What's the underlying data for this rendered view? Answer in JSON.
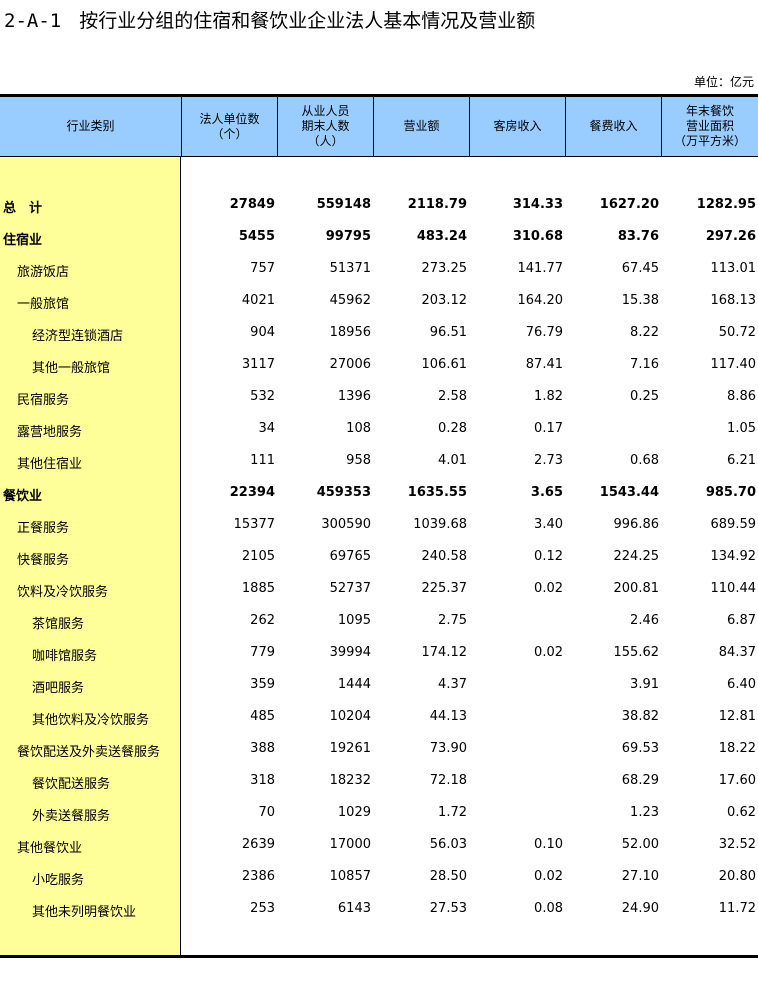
{
  "title": {
    "code": "2-A-1",
    "text": "按行业分组的住宿和餐饮业企业法人基本情况及营业额"
  },
  "unit": "单位：亿元",
  "colors": {
    "header_bg": "#99ccff",
    "category_bg": "#ffff99"
  },
  "columns": [
    "行业类别",
    "法人单位数\n（个）",
    "从业人员\n期末人数\n（人）",
    "营业额",
    "客房收入",
    "餐费收入",
    "年末餐饮\n营业面积\n（万平方米）"
  ],
  "rows": [
    {
      "name": "总　计",
      "level": 0,
      "bold": true,
      "values": [
        "27849",
        "559148",
        "2118.79",
        "314.33",
        "1627.20",
        "1282.95"
      ]
    },
    {
      "name": "住宿业",
      "level": 0,
      "bold": true,
      "values": [
        "5455",
        "99795",
        "483.24",
        "310.68",
        "83.76",
        "297.26"
      ]
    },
    {
      "name": "旅游饭店",
      "level": 1,
      "values": [
        "757",
        "51371",
        "273.25",
        "141.77",
        "67.45",
        "113.01"
      ]
    },
    {
      "name": "一般旅馆",
      "level": 1,
      "values": [
        "4021",
        "45962",
        "203.12",
        "164.20",
        "15.38",
        "168.13"
      ]
    },
    {
      "name": "经济型连锁酒店",
      "level": 2,
      "values": [
        "904",
        "18956",
        "96.51",
        "76.79",
        "8.22",
        "50.72"
      ]
    },
    {
      "name": "其他一般旅馆",
      "level": 2,
      "values": [
        "3117",
        "27006",
        "106.61",
        "87.41",
        "7.16",
        "117.40"
      ]
    },
    {
      "name": "民宿服务",
      "level": 1,
      "values": [
        "532",
        "1396",
        "2.58",
        "1.82",
        "0.25",
        "8.86"
      ]
    },
    {
      "name": "露营地服务",
      "level": 1,
      "values": [
        "34",
        "108",
        "0.28",
        "0.17",
        "",
        "1.05"
      ]
    },
    {
      "name": "其他住宿业",
      "level": 1,
      "values": [
        "111",
        "958",
        "4.01",
        "2.73",
        "0.68",
        "6.21"
      ]
    },
    {
      "name": "餐饮业",
      "level": 0,
      "bold": true,
      "values": [
        "22394",
        "459353",
        "1635.55",
        "3.65",
        "1543.44",
        "985.70"
      ]
    },
    {
      "name": "正餐服务",
      "level": 1,
      "values": [
        "15377",
        "300590",
        "1039.68",
        "3.40",
        "996.86",
        "689.59"
      ]
    },
    {
      "name": "快餐服务",
      "level": 1,
      "values": [
        "2105",
        "69765",
        "240.58",
        "0.12",
        "224.25",
        "134.92"
      ]
    },
    {
      "name": "饮料及冷饮服务",
      "level": 1,
      "values": [
        "1885",
        "52737",
        "225.37",
        "0.02",
        "200.81",
        "110.44"
      ]
    },
    {
      "name": "茶馆服务",
      "level": 2,
      "values": [
        "262",
        "1095",
        "2.75",
        "",
        "2.46",
        "6.87"
      ]
    },
    {
      "name": "咖啡馆服务",
      "level": 2,
      "values": [
        "779",
        "39994",
        "174.12",
        "0.02",
        "155.62",
        "84.37"
      ]
    },
    {
      "name": "酒吧服务",
      "level": 2,
      "values": [
        "359",
        "1444",
        "4.37",
        "",
        "3.91",
        "6.40"
      ]
    },
    {
      "name": "其他饮料及冷饮服务",
      "level": 2,
      "values": [
        "485",
        "10204",
        "44.13",
        "",
        "38.82",
        "12.81"
      ]
    },
    {
      "name": "餐饮配送及外卖送餐服务",
      "level": 1,
      "values": [
        "388",
        "19261",
        "73.90",
        "",
        "69.53",
        "18.22"
      ]
    },
    {
      "name": "餐饮配送服务",
      "level": 2,
      "values": [
        "318",
        "18232",
        "72.18",
        "",
        "68.29",
        "17.60"
      ]
    },
    {
      "name": "外卖送餐服务",
      "level": 2,
      "values": [
        "70",
        "1029",
        "1.72",
        "",
        "1.23",
        "0.62"
      ]
    },
    {
      "name": "其他餐饮业",
      "level": 1,
      "values": [
        "2639",
        "17000",
        "56.03",
        "0.10",
        "52.00",
        "32.52"
      ]
    },
    {
      "name": "小吃服务",
      "level": 2,
      "values": [
        "2386",
        "10857",
        "28.50",
        "0.02",
        "27.10",
        "20.80"
      ]
    },
    {
      "name": "其他未列明餐饮业",
      "level": 2,
      "values": [
        "253",
        "6143",
        "27.53",
        "0.08",
        "24.90",
        "11.72"
      ]
    }
  ]
}
